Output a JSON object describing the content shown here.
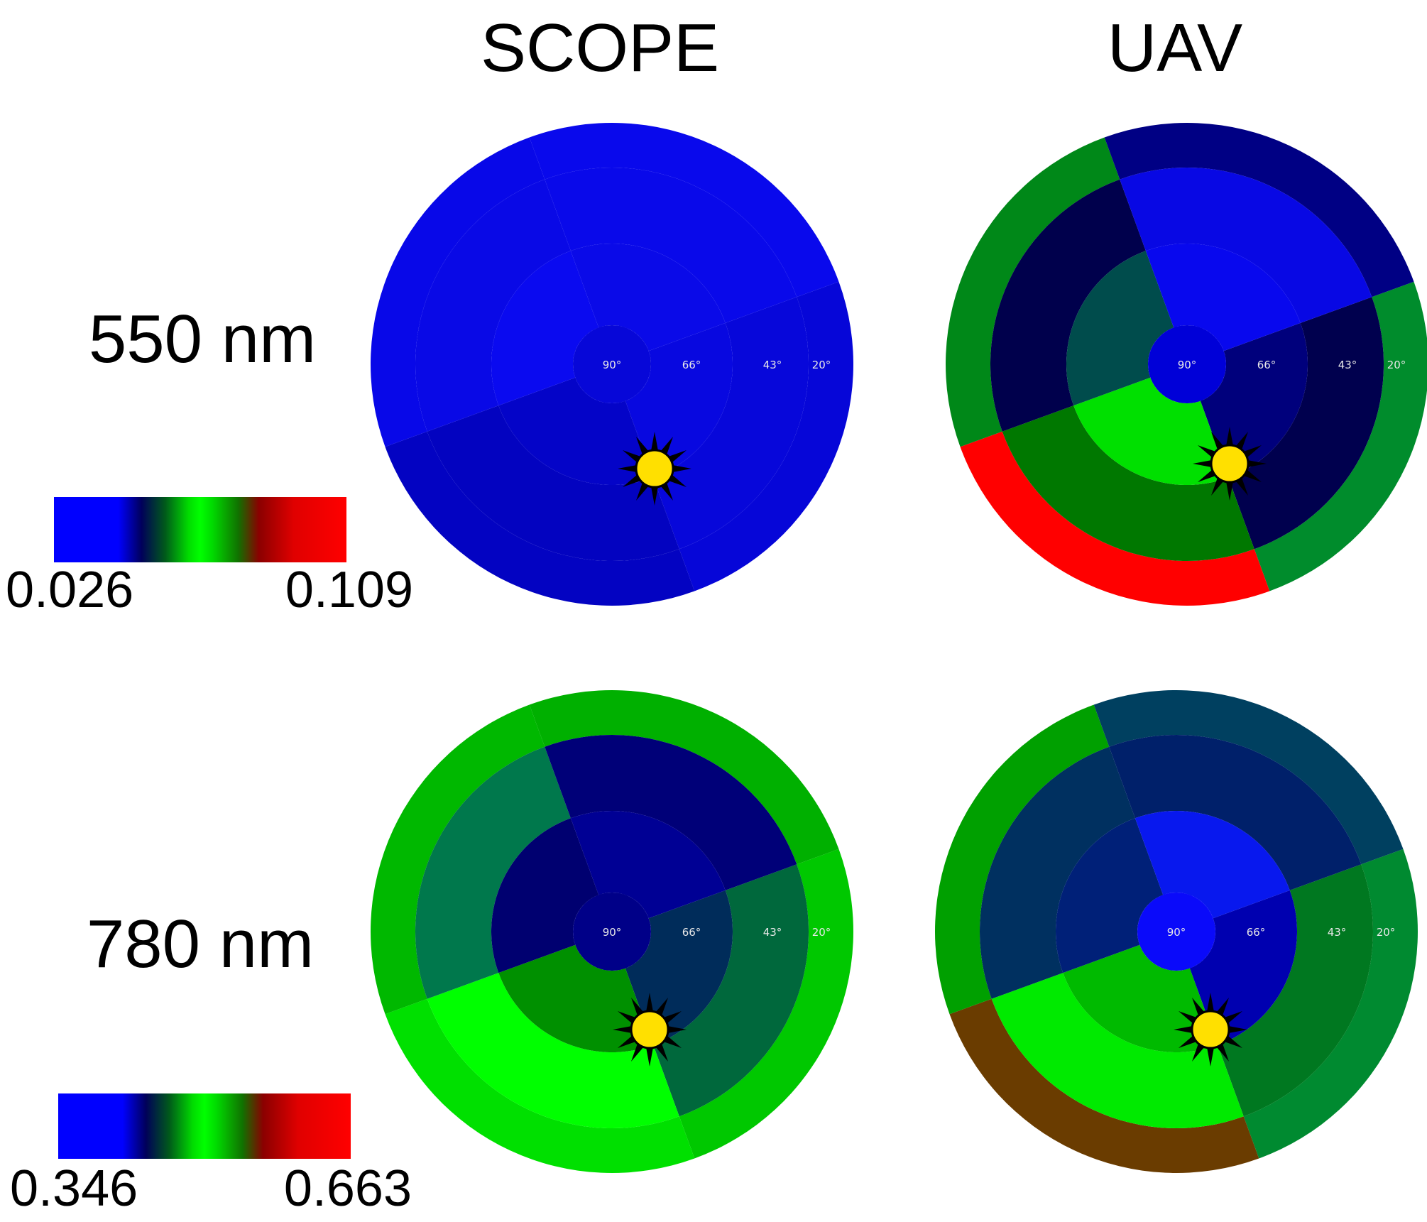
{
  "columns": [
    "SCOPE",
    "UAV"
  ],
  "rows": [
    {
      "label": "550 nm",
      "colorbar": {
        "min": "0.026",
        "max": "0.109"
      }
    },
    {
      "label": "780 nm",
      "colorbar": {
        "min": "0.346",
        "max": "0.663"
      }
    }
  ],
  "ring_labels": [
    "90°",
    "66°",
    "43°",
    "20°"
  ],
  "colors": {
    "scale": [
      "#0000ff",
      "#00007d",
      "#00ff00",
      "#007700",
      "#820000",
      "#ff0000"
    ],
    "sun_fill": "#ffe000",
    "sun_outline": "#000000"
  },
  "icons": {
    "sun": "sun-icon"
  },
  "chart_data": [
    {
      "type": "heatmap",
      "layout": "polar",
      "column": "SCOPE",
      "row": "550 nm",
      "rings": [
        {
          "center": true,
          "color": "#0707d8"
        },
        {
          "boundaries": [
            -20,
            70,
            160,
            250
          ],
          "colors": [
            "#0808e0",
            "#0404c8",
            "#0a0af0",
            "#0a0ae8"
          ]
        },
        {
          "boundaries": [
            -20,
            70,
            160,
            250
          ],
          "colors": [
            "#0707da",
            "#0303c0",
            "#0909e6",
            "#0909ea"
          ]
        },
        {
          "boundaries": [
            -20,
            70,
            160,
            250
          ],
          "colors": [
            "#0606d8",
            "#0303c2",
            "#0808e8",
            "#0909ec"
          ]
        }
      ]
    },
    {
      "type": "heatmap",
      "layout": "polar",
      "column": "UAV",
      "row": "550 nm",
      "rings": [
        {
          "center": true,
          "color": "#0000d8"
        },
        {
          "boundaries": [
            -20,
            70,
            160,
            250
          ],
          "colors": [
            "#00007c",
            "#00e000",
            "#004c4c",
            "#0808ee"
          ]
        },
        {
          "boundaries": [
            -20,
            70,
            160,
            250
          ],
          "colors": [
            "#00004e",
            "#007800",
            "#00004c",
            "#0808e4"
          ]
        },
        {
          "boundaries": [
            -20,
            70,
            160,
            250
          ],
          "colors": [
            "#008c2c",
            "#ff0000",
            "#008818",
            "#000084"
          ]
        }
      ]
    },
    {
      "type": "heatmap",
      "layout": "polar",
      "column": "SCOPE",
      "row": "780 nm",
      "rings": [
        {
          "center": true,
          "color": "#000088"
        },
        {
          "boundaries": [
            -20,
            70,
            160,
            250
          ],
          "colors": [
            "#002c5a",
            "#009000",
            "#000070",
            "#000094"
          ]
        },
        {
          "boundaries": [
            -20,
            70,
            160,
            250
          ],
          "colors": [
            "#00683c",
            "#00ff00",
            "#00784c",
            "#000078"
          ]
        },
        {
          "boundaries": [
            -20,
            70,
            160,
            250
          ],
          "colors": [
            "#00c800",
            "#00e000",
            "#00b800",
            "#00b000"
          ]
        }
      ]
    },
    {
      "type": "heatmap",
      "layout": "polar",
      "column": "UAV",
      "row": "780 nm",
      "rings": [
        {
          "center": true,
          "color": "#0a0afa"
        },
        {
          "boundaries": [
            -20,
            70,
            160,
            250
          ],
          "colors": [
            "#0000b0",
            "#00ba00",
            "#002078",
            "#0818ee"
          ]
        },
        {
          "boundaries": [
            -20,
            70,
            160,
            250
          ],
          "colors": [
            "#007820",
            "#00ea00",
            "#003060",
            "#00206a"
          ]
        },
        {
          "boundaries": [
            -20,
            70,
            160,
            250
          ],
          "colors": [
            "#008a30",
            "#6a3c00",
            "#00a000",
            "#004060"
          ]
        }
      ]
    }
  ]
}
